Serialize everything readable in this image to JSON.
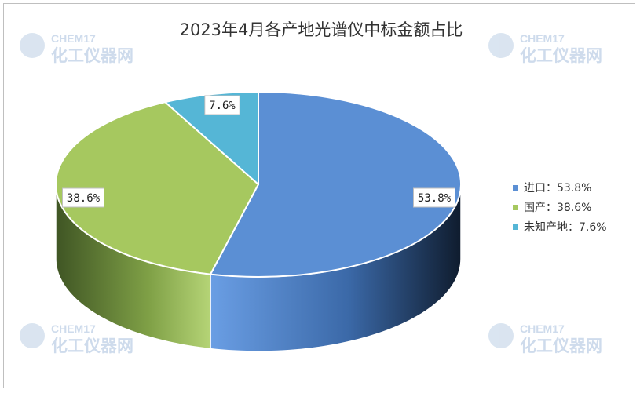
{
  "chart_data": {
    "type": "pie",
    "title": "2023年4月各产地光谱仪中标金额占比",
    "categories": [
      "进口",
      "国产",
      "未知产地"
    ],
    "values": [
      53.8,
      38.6,
      7.6
    ],
    "data_labels": [
      "53.8%",
      "38.6%",
      "7.6%"
    ],
    "legend_labels": [
      "进口：53.8%",
      "国产：38.6%",
      "未知产地：7.6%"
    ],
    "colors": [
      "#5b8fd4",
      "#a6c85f",
      "#55b6d6"
    ],
    "legend_position": "right",
    "style": "3d"
  },
  "watermark": {
    "brand": "CHEM17",
    "name": "化工仪器网"
  }
}
